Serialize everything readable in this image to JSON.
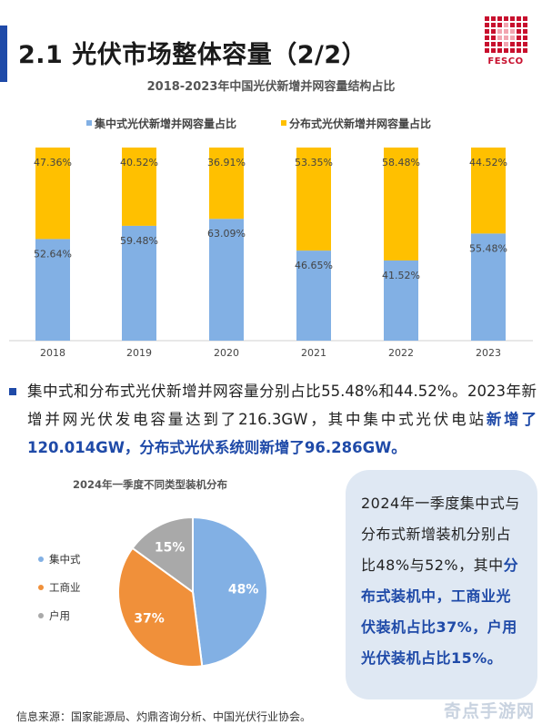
{
  "header": {
    "title": "2.1 光伏市场整体容量（2/2）",
    "logo_text": "FESCO"
  },
  "chart_bar_title": "2018-2023年中国光伏新增并网容量结构占比",
  "chart_data": [
    {
      "type": "bar",
      "stacked": true,
      "title": "2018-2023年中国光伏新增并网容量结构占比",
      "categories": [
        "2018",
        "2019",
        "2020",
        "2021",
        "2022",
        "2023"
      ],
      "series": [
        {
          "name": "集中式光伏新增并网容量占比",
          "color": "#82b0e4",
          "values": [
            52.64,
            59.48,
            63.09,
            46.65,
            41.52,
            55.48
          ],
          "labels": [
            "52.64%",
            "59.48%",
            "63.09%",
            "46.65%",
            "41.52%",
            "55.48%"
          ]
        },
        {
          "name": "分布式光伏新增并网容量占比",
          "color": "#ffc000",
          "values": [
            47.36,
            40.52,
            36.91,
            53.35,
            58.48,
            44.52
          ],
          "labels": [
            "47.36%",
            "40.52%",
            "36.91%",
            "53.35%",
            "58.48%",
            "44.52%"
          ]
        }
      ],
      "ylim": [
        0,
        100
      ],
      "legend_position": "top"
    },
    {
      "type": "pie",
      "title": "2024年一季度不同类型装机分布",
      "categories": [
        "集中式",
        "工商业",
        "户用"
      ],
      "values": [
        48,
        37,
        15
      ],
      "labels": [
        "48%",
        "37%",
        "15%"
      ],
      "colors": [
        "#82b0e4",
        "#f0903a",
        "#a9a9a9"
      ],
      "legend_position": "left"
    }
  ],
  "paragraph": {
    "normal": "集中式和分布式光伏新增并网容量分别占比55.48%和44.52%。2023年新增并网光伏发电容量达到了216.3GW，其中集中式光伏电站",
    "highlight": "新增了120.014GW，分布式光伏系统则新增了96.286GW。"
  },
  "pie_title": "2024年一季度不同类型装机分布",
  "legend": [
    "集中式",
    "工商业",
    "户用"
  ],
  "callout": {
    "normal": "2024年一季度集中式与分布式新增装机分别占比48%与52%，其中",
    "highlight": "分布式装机中，工商业光伏装机占比37%，户用光伏装机占比15%。"
  },
  "source": "信息来源：国家能源局、灼鼎咨询分析、中国光伏行业协会。",
  "watermark": "奇点手游网",
  "colors": {
    "accent": "#1f4aa8",
    "central": "#82b0e4",
    "distributed": "#ffc000",
    "commercial": "#f0903a",
    "household": "#a9a9a9",
    "callout_bg": "#dfe8f3"
  }
}
